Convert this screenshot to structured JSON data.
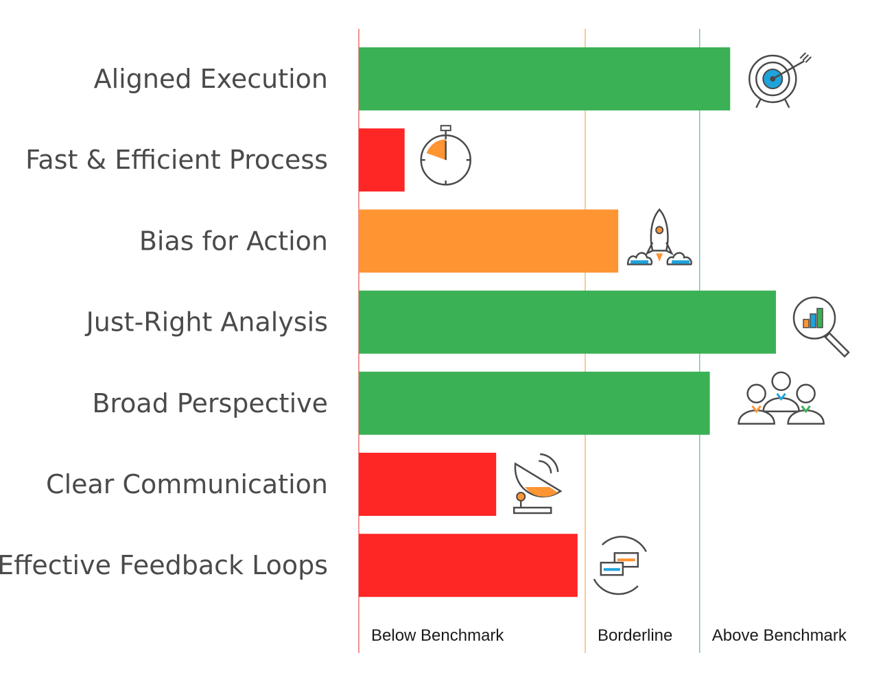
{
  "chart_data": {
    "type": "bar",
    "orientation": "horizontal",
    "title": "",
    "xlabel": "",
    "ylabel": "",
    "xlim": [
      0,
      100
    ],
    "grid": false,
    "legend": "none",
    "categories": [
      "Aligned Execution",
      "Fast & Efficient Process",
      "Bias for Action",
      "Just-Right Analysis",
      "Broad Perspective",
      "Clear Communication",
      "Effective Feedback Loops"
    ],
    "values": [
      73,
      9,
      51,
      82,
      69,
      27,
      43
    ],
    "bar_colors": [
      "#3bb155",
      "#ff2626",
      "#ff9433",
      "#3bb155",
      "#3bb155",
      "#ff2626",
      "#ff2626"
    ],
    "icons": [
      "target-arrow-icon",
      "stopwatch-icon",
      "rocket-launch-icon",
      "magnifier-chart-icon",
      "team-people-icon",
      "satellite-dish-icon",
      "feedback-chat-icon"
    ],
    "zones": [
      {
        "label": "Below Benchmark",
        "start": 0,
        "end": 44.5,
        "color": "#e84a4a"
      },
      {
        "label": "Borderline",
        "start": 44.5,
        "end": 67,
        "color": "#f5a65b"
      },
      {
        "label": "Above Benchmark",
        "start": 67,
        "end": 100,
        "color": "#5fb7a0"
      }
    ]
  }
}
